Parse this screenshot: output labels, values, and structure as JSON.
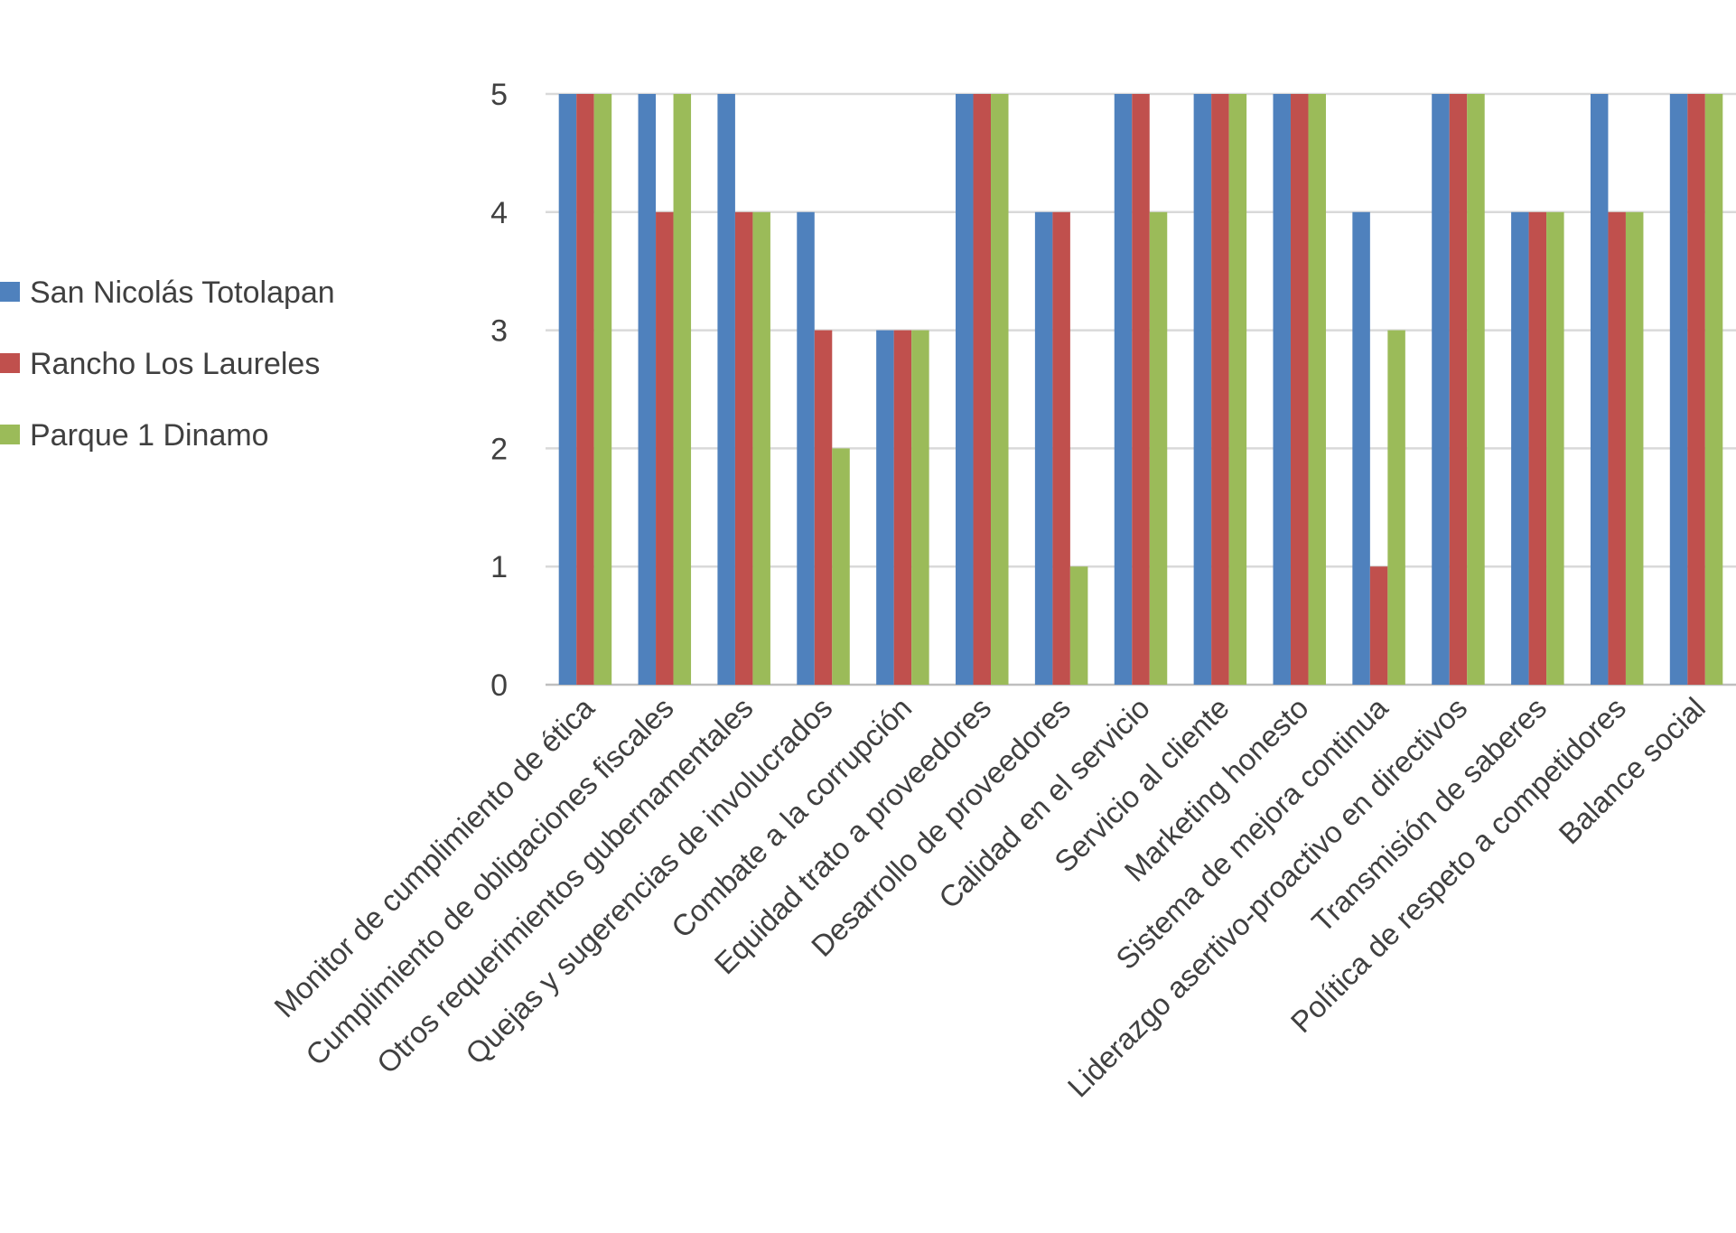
{
  "chart_data": {
    "type": "bar",
    "title": "",
    "xlabel": "",
    "ylabel": "",
    "ylim": [
      0,
      5
    ],
    "yticks": [
      0,
      1,
      2,
      3,
      4,
      5
    ],
    "grid": true,
    "legend_position": "left",
    "categories": [
      "Monitor de cumplimiento de ética",
      "Cumplimiento de obligaciones fiscales",
      "Otros requerimientos gubernamentales",
      "Quejas y sugerencias de involucrados",
      "Combate a la corrupción",
      "Equidad trato a proveedores",
      "Desarrollo de proveedores",
      "Calidad en el servicio",
      "Servicio al cliente",
      "Marketing honesto",
      "Sistema de mejora continua",
      "Liderazgo asertivo-proactivo en directivos",
      "Transmisión de saberes",
      "Política de respeto a competidores",
      "Balance social"
    ],
    "series": [
      {
        "name": "San Nicolás Totolapan",
        "color": "#4f81bd",
        "values": [
          5,
          5,
          5,
          4,
          3,
          5,
          4,
          5,
          5,
          5,
          4,
          5,
          4,
          5,
          5
        ]
      },
      {
        "name": "Rancho Los Laureles",
        "color": "#c0504d",
        "values": [
          5,
          4,
          4,
          3,
          3,
          5,
          4,
          5,
          5,
          5,
          1,
          5,
          4,
          4,
          5
        ]
      },
      {
        "name": "Parque 1 Dinamo",
        "color": "#9bbb59",
        "values": [
          5,
          5,
          4,
          2,
          3,
          5,
          1,
          4,
          5,
          5,
          3,
          5,
          4,
          4,
          5
        ]
      }
    ]
  }
}
